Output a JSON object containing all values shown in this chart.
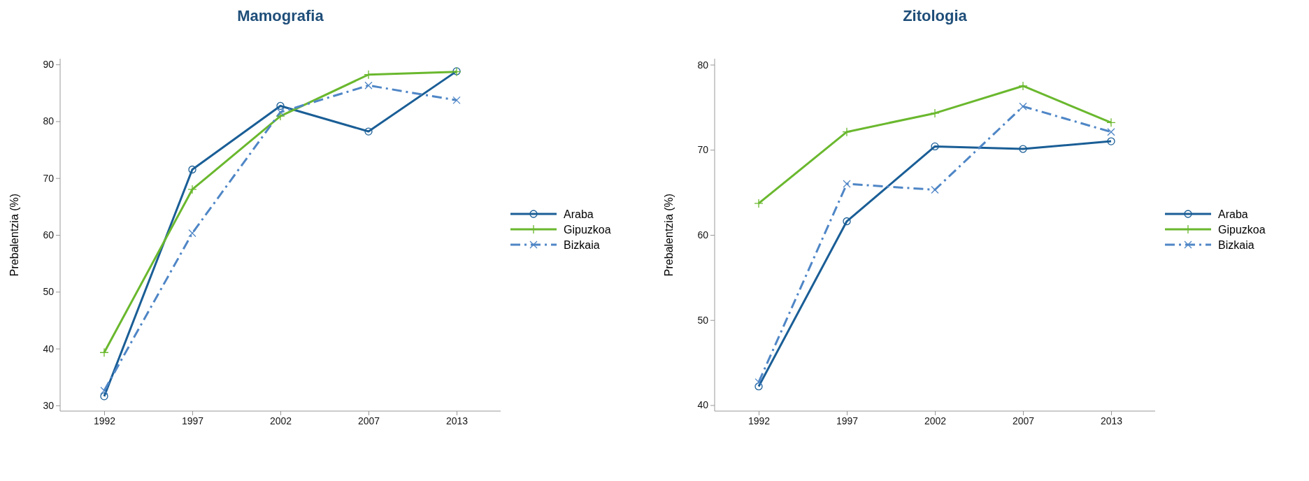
{
  "chart_data": [
    {
      "type": "line",
      "title": "Mamografia",
      "ylabel": "Prebalentzia (%)",
      "categories": [
        "1992",
        "1997",
        "2002",
        "2007",
        "2013"
      ],
      "ylim": [
        29,
        91
      ],
      "yticks": [
        30,
        40,
        50,
        60,
        70,
        80,
        90
      ],
      "grid": false,
      "legend": "right",
      "series": [
        {
          "name": "Araba",
          "color": "#1a5e96",
          "marker": "circle",
          "line_style": "solid",
          "values": [
            31.6,
            71.5,
            82.7,
            78.2,
            88.8
          ]
        },
        {
          "name": "Gipuzkoa",
          "color": "#6ab82e",
          "marker": "plus",
          "line_style": "solid",
          "values": [
            39.3,
            68.0,
            80.9,
            88.2,
            88.7
          ]
        },
        {
          "name": "Bizkaia",
          "color": "#4f86c6",
          "marker": "cross",
          "line_style": "dashed",
          "values": [
            32.6,
            60.3,
            81.6,
            86.3,
            83.7
          ]
        }
      ]
    },
    {
      "type": "line",
      "title": "Zitologia",
      "ylabel": "Prebalentzia (%)",
      "categories": [
        "1992",
        "1997",
        "2002",
        "2007",
        "2013"
      ],
      "ylim": [
        39.3,
        80.7
      ],
      "yticks": [
        40,
        50,
        60,
        70,
        80
      ],
      "grid": false,
      "legend": "right",
      "series": [
        {
          "name": "Araba",
          "color": "#1a5e96",
          "marker": "circle",
          "line_style": "solid",
          "values": [
            42.2,
            61.6,
            70.4,
            70.1,
            71.0
          ]
        },
        {
          "name": "Gipuzkoa",
          "color": "#6ab82e",
          "marker": "plus",
          "line_style": "solid",
          "values": [
            63.7,
            72.1,
            74.3,
            77.5,
            73.2
          ]
        },
        {
          "name": "Bizkaia",
          "color": "#4f86c6",
          "marker": "cross",
          "line_style": "dashed",
          "values": [
            42.7,
            66.0,
            65.3,
            75.1,
            72.1
          ]
        }
      ]
    }
  ]
}
